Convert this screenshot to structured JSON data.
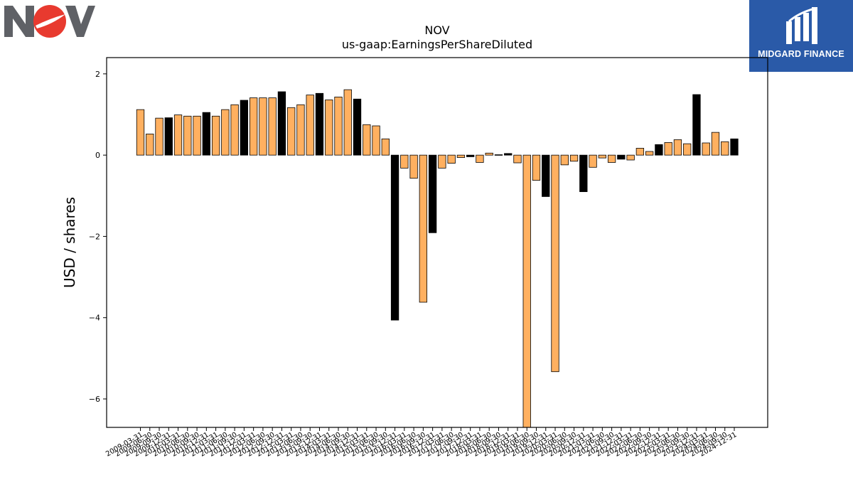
{
  "logos": {
    "left": {
      "name": "NOV",
      "colors": {
        "text": "#5f6166",
        "accent": "#e83a2f"
      }
    },
    "right": {
      "name": "MIDGARD FINANCE",
      "colors": {
        "background": "#2a5aa8",
        "text": "#ffffff"
      }
    }
  },
  "chart_data": {
    "type": "bar",
    "title": "NOV",
    "subtitle": "us-gaap:EarningsPerShareDiluted",
    "xlabel": "",
    "ylabel": "USD / shares",
    "ylim": [
      -6.7,
      2.4
    ],
    "yticks": [
      2,
      0,
      -2,
      -4,
      -6
    ],
    "ytick_labels": [
      "2",
      "0",
      "−2",
      "−4",
      "−6"
    ],
    "grid": false,
    "colors": {
      "quarter": "#ffb060",
      "annual": "#000000",
      "edge": "#000000"
    },
    "categories": [
      "2009-03-31",
      "2009-06-30",
      "2009-09-30",
      "2009-12-31",
      "2010-03-31",
      "2010-06-30",
      "2010-09-30",
      "2010-12-31",
      "2011-03-31",
      "2011-06-30",
      "2011-09-30",
      "2011-12-31",
      "2012-03-31",
      "2012-06-30",
      "2012-09-30",
      "2012-12-31",
      "2013-03-31",
      "2013-06-30",
      "2013-09-30",
      "2013-12-31",
      "2014-03-31",
      "2014-06-30",
      "2014-09-30",
      "2014-12-31",
      "2015-03-31",
      "2015-06-30",
      "2015-09-30",
      "2015-12-31",
      "2016-03-31",
      "2016-06-30",
      "2016-09-30",
      "2016-12-31",
      "2017-03-31",
      "2017-06-30",
      "2017-09-30",
      "2017-12-31",
      "2018-03-31",
      "2018-06-30",
      "2018-09-30",
      "2018-12-31",
      "2019-03-31",
      "2019-06-30",
      "2019-09-30",
      "2019-12-31",
      "2020-03-31",
      "2020-06-30",
      "2020-09-30",
      "2020-12-31",
      "2021-03-31",
      "2021-06-30",
      "2021-09-30",
      "2021-12-31",
      "2022-03-31",
      "2022-06-30",
      "2022-09-30",
      "2022-12-31",
      "2023-03-31",
      "2023-06-30",
      "2023-09-30",
      "2023-12-31",
      "2024-03-31",
      "2024-06-30",
      "2024-09-30",
      "2024-12-31"
    ],
    "values": [
      1.12,
      0.52,
      0.91,
      0.92,
      0.99,
      0.96,
      0.96,
      1.05,
      0.96,
      1.12,
      1.24,
      1.35,
      1.41,
      1.41,
      1.41,
      1.56,
      1.17,
      1.24,
      1.48,
      1.52,
      1.36,
      1.43,
      1.61,
      1.38,
      0.75,
      0.72,
      0.4,
      -4.06,
      -0.32,
      -0.57,
      -3.62,
      -1.91,
      -0.32,
      -0.2,
      -0.06,
      -0.04,
      -0.18,
      0.05,
      0.01,
      0.04,
      -0.19,
      -6.7,
      -0.62,
      -1.02,
      -5.33,
      -0.24,
      -0.15,
      -0.9,
      -0.3,
      -0.07,
      -0.18,
      -0.1,
      -0.12,
      0.17,
      0.09,
      0.26,
      0.31,
      0.38,
      0.28,
      1.49,
      0.3,
      0.56,
      0.33,
      0.4
    ],
    "annual": [
      false,
      false,
      false,
      true,
      false,
      false,
      false,
      true,
      false,
      false,
      false,
      true,
      false,
      false,
      false,
      true,
      false,
      false,
      false,
      true,
      false,
      false,
      false,
      true,
      false,
      false,
      false,
      true,
      false,
      false,
      false,
      true,
      false,
      false,
      false,
      true,
      false,
      false,
      false,
      true,
      false,
      false,
      false,
      true,
      false,
      false,
      false,
      true,
      false,
      false,
      false,
      true,
      false,
      false,
      false,
      true,
      false,
      false,
      false,
      true,
      false,
      false,
      false,
      true
    ]
  }
}
